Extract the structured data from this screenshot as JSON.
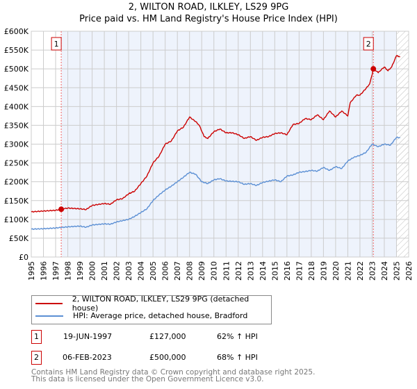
{
  "chart_data": {
    "type": "line",
    "title": "2, WILTON ROAD, ILKLEY, LS29 9PG",
    "subtitle": "Price paid vs. HM Land Registry's House Price Index (HPI)",
    "xlim": [
      1995,
      2026
    ],
    "ylim": [
      0,
      600000
    ],
    "x_ticks": [
      "1995",
      "1996",
      "1997",
      "1998",
      "1999",
      "2000",
      "2001",
      "2002",
      "2003",
      "2004",
      "2005",
      "2006",
      "2007",
      "2008",
      "2009",
      "2010",
      "2011",
      "2012",
      "2013",
      "2014",
      "2015",
      "2016",
      "2017",
      "2018",
      "2019",
      "2020",
      "2021",
      "2022",
      "2023",
      "2024",
      "2025",
      "2026"
    ],
    "y_ticks": [
      "£0",
      "£50K",
      "£100K",
      "£150K",
      "£200K",
      "£250K",
      "£300K",
      "£350K",
      "£400K",
      "£450K",
      "£500K",
      "£550K",
      "£600K"
    ],
    "grid": true,
    "series": [
      {
        "name": "2, WILTON ROAD, ILKLEY, LS29 9PG (detached house)",
        "color": "#cc0000",
        "points": [
          [
            1995,
            120
          ],
          [
            1996,
            122
          ],
          [
            1997,
            124
          ],
          [
            1997.46,
            127
          ],
          [
            1998,
            130
          ],
          [
            1999,
            128
          ],
          [
            1999.5,
            126
          ],
          [
            2000,
            137
          ],
          [
            2001,
            142
          ],
          [
            2001.5,
            140
          ],
          [
            2002,
            152
          ],
          [
            2002.5,
            155
          ],
          [
            2003,
            168
          ],
          [
            2003.5,
            175
          ],
          [
            2004,
            195
          ],
          [
            2004.5,
            215
          ],
          [
            2005,
            250
          ],
          [
            2005.5,
            268
          ],
          [
            2006,
            300
          ],
          [
            2006.5,
            308
          ],
          [
            2007,
            335
          ],
          [
            2007.5,
            345
          ],
          [
            2008,
            372
          ],
          [
            2008.5,
            360
          ],
          [
            2008.8,
            350
          ],
          [
            2009.2,
            320
          ],
          [
            2009.5,
            315
          ],
          [
            2010,
            333
          ],
          [
            2010.5,
            340
          ],
          [
            2011,
            330
          ],
          [
            2011.5,
            330
          ],
          [
            2012,
            325
          ],
          [
            2012.5,
            315
          ],
          [
            2013,
            320
          ],
          [
            2013.5,
            310
          ],
          [
            2014,
            318
          ],
          [
            2014.5,
            320
          ],
          [
            2015,
            328
          ],
          [
            2015.5,
            330
          ],
          [
            2016,
            325
          ],
          [
            2016.5,
            352
          ],
          [
            2017,
            355
          ],
          [
            2017.5,
            368
          ],
          [
            2018,
            365
          ],
          [
            2018.5,
            378
          ],
          [
            2019,
            365
          ],
          [
            2019.5,
            388
          ],
          [
            2020,
            372
          ],
          [
            2020.5,
            388
          ],
          [
            2021,
            375
          ],
          [
            2021.2,
            410
          ],
          [
            2021.7,
            430
          ],
          [
            2022,
            430
          ],
          [
            2022.5,
            448
          ],
          [
            2022.8,
            460
          ],
          [
            2023,
            485
          ],
          [
            2023.1,
            500
          ],
          [
            2023.5,
            490
          ],
          [
            2024,
            505
          ],
          [
            2024.3,
            495
          ],
          [
            2024.6,
            505
          ],
          [
            2025,
            535
          ],
          [
            2025.3,
            532
          ]
        ]
      },
      {
        "name": "HPI: Average price, detached house, Bradford",
        "color": "#5b8fd4",
        "points": [
          [
            1995,
            74
          ],
          [
            1996,
            75
          ],
          [
            1997,
            77
          ],
          [
            1998,
            80
          ],
          [
            1999,
            82
          ],
          [
            1999.5,
            79
          ],
          [
            2000,
            85
          ],
          [
            2001,
            88
          ],
          [
            2001.5,
            87
          ],
          [
            2002,
            93
          ],
          [
            2003,
            100
          ],
          [
            2003.5,
            108
          ],
          [
            2004,
            118
          ],
          [
            2004.5,
            128
          ],
          [
            2005,
            150
          ],
          [
            2005.5,
            165
          ],
          [
            2006,
            178
          ],
          [
            2006.5,
            188
          ],
          [
            2007,
            200
          ],
          [
            2007.5,
            212
          ],
          [
            2008,
            225
          ],
          [
            2008.5,
            220
          ],
          [
            2009,
            200
          ],
          [
            2009.5,
            195
          ],
          [
            2010,
            205
          ],
          [
            2010.5,
            208
          ],
          [
            2011,
            202
          ],
          [
            2012,
            200
          ],
          [
            2012.5,
            193
          ],
          [
            2013,
            195
          ],
          [
            2013.5,
            190
          ],
          [
            2014,
            198
          ],
          [
            2015,
            205
          ],
          [
            2015.5,
            200
          ],
          [
            2016,
            215
          ],
          [
            2016.5,
            218
          ],
          [
            2017,
            225
          ],
          [
            2017.5,
            227
          ],
          [
            2018,
            230
          ],
          [
            2018.5,
            228
          ],
          [
            2019,
            238
          ],
          [
            2019.5,
            230
          ],
          [
            2020,
            240
          ],
          [
            2020.5,
            235
          ],
          [
            2021,
            255
          ],
          [
            2021.5,
            265
          ],
          [
            2022,
            270
          ],
          [
            2022.5,
            278
          ],
          [
            2023,
            300
          ],
          [
            2023.5,
            293
          ],
          [
            2024,
            300
          ],
          [
            2024.5,
            297
          ],
          [
            2025,
            318
          ],
          [
            2025.3,
            317
          ]
        ]
      }
    ],
    "sales": [
      {
        "label": "1",
        "x": 1997.46,
        "y": 127,
        "date": "19-JUN-1997",
        "price": "£127,000",
        "hpi": "62% ↑ HPI"
      },
      {
        "label": "2",
        "x": 2023.1,
        "y": 500,
        "date": "06-FEB-2023",
        "price": "£500,000",
        "hpi": "68% ↑ HPI"
      }
    ],
    "shaded_range": [
      1997.46,
      2025.0
    ],
    "forecast_hatch_from": 2025.0,
    "legend_placement": "bottom"
  },
  "footer": {
    "line1": "Contains HM Land Registry data © Crown copyright and database right 2025.",
    "line2": "This data is licensed under the Open Government Licence v3.0."
  }
}
